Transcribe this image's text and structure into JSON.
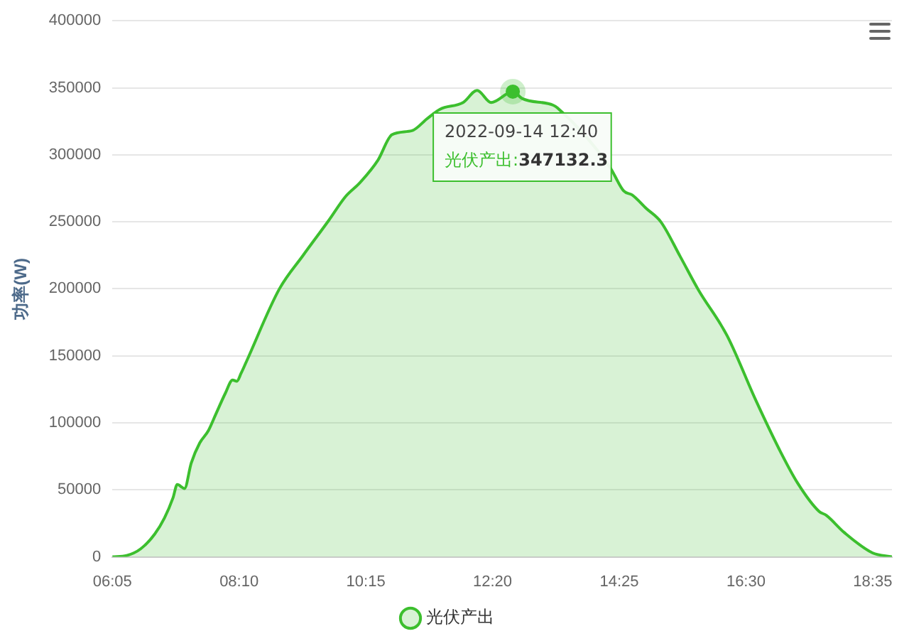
{
  "chart_data": {
    "type": "area",
    "ylabel": "功率(W)",
    "xlim": [
      6.0833,
      18.9
    ],
    "xticks": [
      {
        "value": 6.0833,
        "label": "06:05"
      },
      {
        "value": 8.1667,
        "label": "08:10"
      },
      {
        "value": 10.25,
        "label": "10:15"
      },
      {
        "value": 12.3333,
        "label": "12:20"
      },
      {
        "value": 14.4167,
        "label": "14:25"
      },
      {
        "value": 16.5,
        "label": "16:30"
      },
      {
        "value": 18.5833,
        "label": "18:35"
      }
    ],
    "ylim": [
      0,
      400000
    ],
    "yticks": [
      0,
      50000,
      100000,
      150000,
      200000,
      250000,
      300000,
      350000,
      400000
    ],
    "grid": "y",
    "legend": "bottom",
    "marker": "none",
    "line_style": "solid",
    "x": [
      6.0833,
      6.32,
      6.55,
      6.78,
      6.94,
      7.08,
      7.15,
      7.27,
      7.38,
      7.52,
      7.66,
      7.78,
      7.94,
      8.06,
      8.13,
      8.2,
      8.29,
      8.83,
      9.22,
      9.64,
      9.92,
      10.15,
      10.45,
      10.68,
      11.01,
      11.26,
      11.47,
      11.85,
      12.08,
      12.31,
      12.6667,
      12.82,
      13.33,
      13.4,
      13.75,
      14.03,
      14.26,
      14.49,
      14.63,
      14.86,
      15.1,
      15.42,
      15.72,
      16.19,
      16.66,
      17.05,
      17.35,
      17.7,
      17.82,
      18.12,
      18.58,
      18.9
    ],
    "series": [
      {
        "name": "光伏产出",
        "color": "#3cbf2e",
        "values": [
          0,
          1000,
          6000,
          17000,
          29000,
          44000,
          54000,
          51000,
          70000,
          85000,
          94000,
          106000,
          122000,
          132000,
          131000,
          137000,
          146000,
          200000,
          225000,
          251000,
          269000,
          279000,
          296000,
          315000,
          318000,
          327000,
          334000,
          339000,
          348000,
          339000,
          347132.3,
          342000,
          337000,
          335000,
          null,
          null,
          291000,
          273000,
          270000,
          260000,
          250000,
          224000,
          199000,
          165000,
          117000,
          80000,
          55000,
          34000,
          31000,
          18000,
          3000,
          0
        ]
      }
    ],
    "annotations": [
      {
        "text": "2022-09-14 12:40",
        "x": 12.6667,
        "y": 347132.3
      },
      "光伏产出:347132.3"
    ]
  }
}
